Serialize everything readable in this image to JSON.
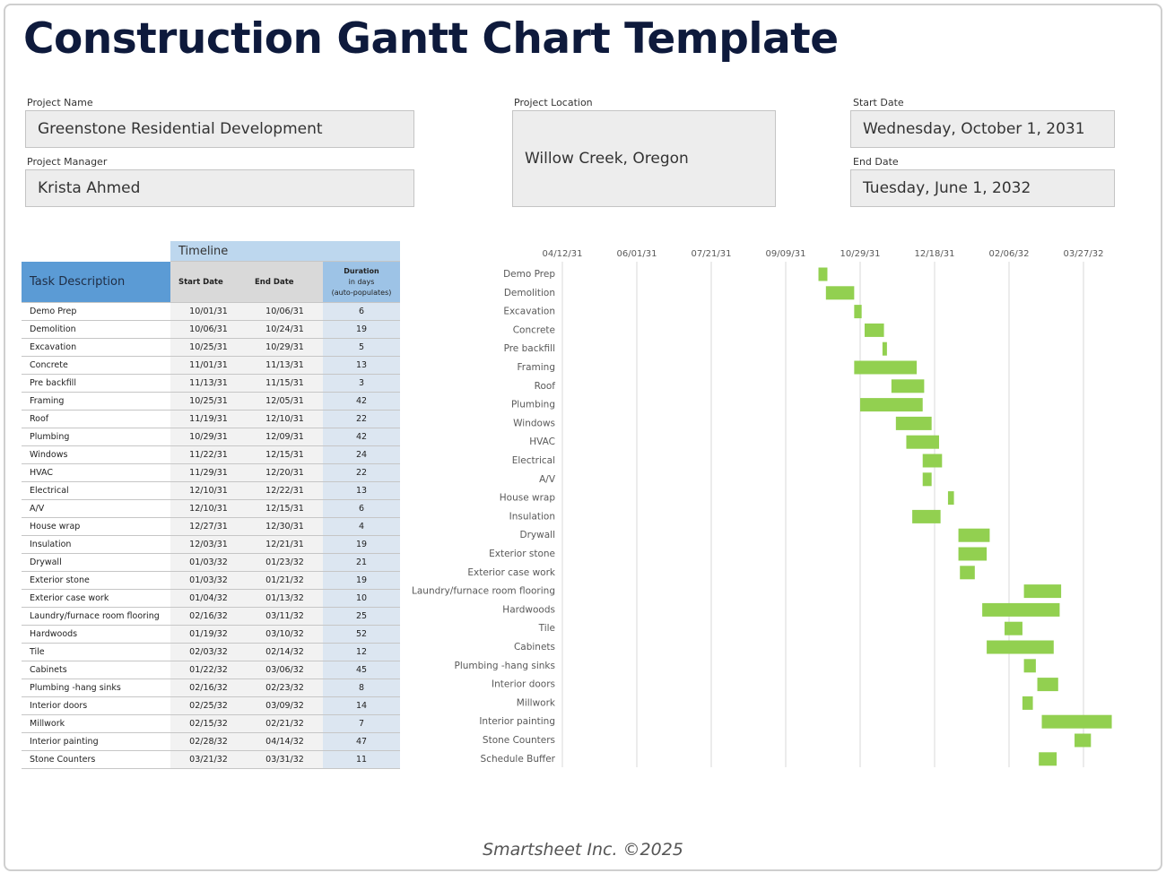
{
  "title": "Construction Gantt Chart Template",
  "fields": {
    "project_name": {
      "label": "Project Name",
      "value": "Greenstone Residential Development"
    },
    "project_manager": {
      "label": "Project Manager",
      "value": "Krista Ahmed"
    },
    "project_location": {
      "label": "Project Location",
      "value": "Willow Creek, Oregon"
    },
    "start_date": {
      "label": "Start Date",
      "value": "Wednesday, October 1, 2031"
    },
    "end_date": {
      "label": "End Date",
      "value": "Tuesday, June 1, 2032"
    }
  },
  "table": {
    "group_header": "Timeline",
    "columns": [
      "Task Description",
      "Start Date",
      "End Date"
    ],
    "duration_header": [
      "Duration",
      "in days",
      "(auto-populates)"
    ],
    "rows": [
      [
        "Demo Prep",
        "10/01/31",
        "10/06/31",
        6
      ],
      [
        "Demolition",
        "10/06/31",
        "10/24/31",
        19
      ],
      [
        "Excavation",
        "10/25/31",
        "10/29/31",
        5
      ],
      [
        "Concrete",
        "11/01/31",
        "11/13/31",
        13
      ],
      [
        "Pre backfill",
        "11/13/31",
        "11/15/31",
        3
      ],
      [
        "Framing",
        "10/25/31",
        "12/05/31",
        42
      ],
      [
        "Roof",
        "11/19/31",
        "12/10/31",
        22
      ],
      [
        "Plumbing",
        "10/29/31",
        "12/09/31",
        42
      ],
      [
        "Windows",
        "11/22/31",
        "12/15/31",
        24
      ],
      [
        "HVAC",
        "11/29/31",
        "12/20/31",
        22
      ],
      [
        "Electrical",
        "12/10/31",
        "12/22/31",
        13
      ],
      [
        "A/V",
        "12/10/31",
        "12/15/31",
        6
      ],
      [
        "House wrap",
        "12/27/31",
        "12/30/31",
        4
      ],
      [
        "Insulation",
        "12/03/31",
        "12/21/31",
        19
      ],
      [
        "Drywall",
        "01/03/32",
        "01/23/32",
        21
      ],
      [
        "Exterior stone",
        "01/03/32",
        "01/21/32",
        19
      ],
      [
        "Exterior case work",
        "01/04/32",
        "01/13/32",
        10
      ],
      [
        "Laundry/furnace room flooring",
        "02/16/32",
        "03/11/32",
        25
      ],
      [
        "Hardwoods",
        "01/19/32",
        "03/10/32",
        52
      ],
      [
        "Tile",
        "02/03/32",
        "02/14/32",
        12
      ],
      [
        "Cabinets",
        "01/22/32",
        "03/06/32",
        45
      ],
      [
        "Plumbing -hang sinks",
        "02/16/32",
        "02/23/32",
        8
      ],
      [
        "Interior doors",
        "02/25/32",
        "03/09/32",
        14
      ],
      [
        "Millwork",
        "02/15/32",
        "02/21/32",
        7
      ],
      [
        "Interior painting",
        "02/28/32",
        "04/14/32",
        47
      ],
      [
        "Stone Counters",
        "03/21/32",
        "03/31/32",
        11
      ]
    ]
  },
  "chart_data": {
    "type": "gantt",
    "categories": [
      "Demo Prep",
      "Demolition",
      "Excavation",
      "Concrete",
      "Pre backfill",
      "Framing",
      "Roof",
      "Plumbing",
      "Windows",
      "HVAC",
      "Electrical",
      "A/V",
      "House wrap",
      "Insulation",
      "Drywall",
      "Exterior stone",
      "Exterior case work",
      "Laundry/furnace room flooring",
      "Hardwoods",
      "Tile",
      "Cabinets",
      "Plumbing -hang sinks",
      "Interior doors",
      "Millwork",
      "Interior painting",
      "Stone Counters",
      "Schedule Buffer"
    ],
    "start": [
      48122,
      48127,
      48146,
      48153,
      48165,
      48146,
      48171,
      48150,
      48174,
      48181,
      48192,
      48192,
      48209,
      48185,
      48216,
      48216,
      48217,
      48260,
      48232,
      48247,
      48235,
      48260,
      48269,
      48259,
      48272,
      48294,
      48270
    ],
    "values": [
      6,
      19,
      5,
      13,
      3,
      42,
      22,
      42,
      24,
      22,
      13,
      6,
      4,
      19,
      21,
      19,
      10,
      25,
      52,
      12,
      45,
      8,
      14,
      7,
      47,
      11,
      12
    ],
    "color": "#92d050",
    "xlim": [
      47950,
      48350
    ],
    "xticks": [
      {
        "value": 47950,
        "label": "04/12/31"
      },
      {
        "value": 48000,
        "label": "06/01/31"
      },
      {
        "value": 48050,
        "label": "07/21/31"
      },
      {
        "value": 48100,
        "label": "09/09/31"
      },
      {
        "value": 48150,
        "label": "10/29/31"
      },
      {
        "value": 48200,
        "label": "12/18/31"
      },
      {
        "value": 48250,
        "label": "02/06/32"
      },
      {
        "value": 48300,
        "label": "03/27/32"
      }
    ],
    "grid": true
  },
  "footer": "Smartsheet Inc. ©2025"
}
